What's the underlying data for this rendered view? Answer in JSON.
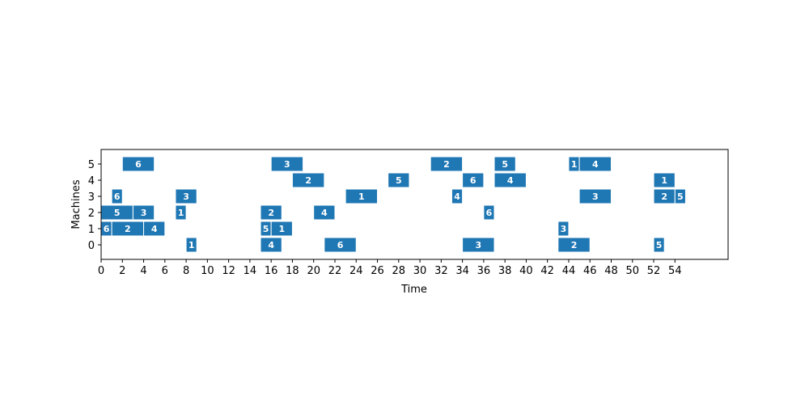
{
  "chart_data": {
    "type": "gantt",
    "title": "",
    "xlabel": "Time",
    "ylabel": "Machines",
    "xlim": [
      0,
      59
    ],
    "ylim": [
      -0.9,
      5.9
    ],
    "xticks": [
      0,
      2,
      4,
      6,
      8,
      10,
      12,
      14,
      16,
      18,
      20,
      22,
      24,
      26,
      28,
      30,
      32,
      34,
      36,
      38,
      40,
      42,
      44,
      46,
      48,
      50,
      52,
      54
    ],
    "yticks": [
      0,
      1,
      2,
      3,
      4,
      5
    ],
    "grid": false,
    "bar_color": "#1f77b4",
    "tasks": [
      {
        "machine": 5,
        "start": 2,
        "end": 5,
        "job": "6"
      },
      {
        "machine": 5,
        "start": 16,
        "end": 19,
        "job": "3"
      },
      {
        "machine": 5,
        "start": 31,
        "end": 34,
        "job": "2"
      },
      {
        "machine": 5,
        "start": 37,
        "end": 39,
        "job": "5"
      },
      {
        "machine": 5,
        "start": 44,
        "end": 45,
        "job": "1"
      },
      {
        "machine": 5,
        "start": 45,
        "end": 48,
        "job": "4"
      },
      {
        "machine": 4,
        "start": 18,
        "end": 21,
        "job": "2"
      },
      {
        "machine": 4,
        "start": 27,
        "end": 29,
        "job": "5"
      },
      {
        "machine": 4,
        "start": 34,
        "end": 36,
        "job": "6"
      },
      {
        "machine": 4,
        "start": 37,
        "end": 40,
        "job": "4"
      },
      {
        "machine": 4,
        "start": 52,
        "end": 54,
        "job": "1"
      },
      {
        "machine": 3,
        "start": 1,
        "end": 2,
        "job": "6"
      },
      {
        "machine": 3,
        "start": 7,
        "end": 9,
        "job": "3"
      },
      {
        "machine": 3,
        "start": 23,
        "end": 26,
        "job": "1"
      },
      {
        "machine": 3,
        "start": 33,
        "end": 34,
        "job": "4"
      },
      {
        "machine": 3,
        "start": 45,
        "end": 48,
        "job": "3"
      },
      {
        "machine": 3,
        "start": 52,
        "end": 54,
        "job": "2"
      },
      {
        "machine": 3,
        "start": 54,
        "end": 55,
        "job": "5"
      },
      {
        "machine": 2,
        "start": 0,
        "end": 3,
        "job": "5"
      },
      {
        "machine": 2,
        "start": 3,
        "end": 5,
        "job": "3"
      },
      {
        "machine": 2,
        "start": 7,
        "end": 8,
        "job": "1"
      },
      {
        "machine": 2,
        "start": 15,
        "end": 17,
        "job": "2"
      },
      {
        "machine": 2,
        "start": 20,
        "end": 22,
        "job": "4"
      },
      {
        "machine": 2,
        "start": 36,
        "end": 37,
        "job": "6"
      },
      {
        "machine": 1,
        "start": 0,
        "end": 1,
        "job": "6"
      },
      {
        "machine": 1,
        "start": 1,
        "end": 4,
        "job": "2"
      },
      {
        "machine": 1,
        "start": 4,
        "end": 6,
        "job": "4"
      },
      {
        "machine": 1,
        "start": 15,
        "end": 16,
        "job": "5"
      },
      {
        "machine": 1,
        "start": 16,
        "end": 18,
        "job": "1"
      },
      {
        "machine": 1,
        "start": 43,
        "end": 44,
        "job": "3"
      },
      {
        "machine": 0,
        "start": 8,
        "end": 9,
        "job": "1"
      },
      {
        "machine": 0,
        "start": 15,
        "end": 17,
        "job": "4"
      },
      {
        "machine": 0,
        "start": 21,
        "end": 24,
        "job": "6"
      },
      {
        "machine": 0,
        "start": 34,
        "end": 37,
        "job": "3"
      },
      {
        "machine": 0,
        "start": 43,
        "end": 46,
        "job": "2"
      },
      {
        "machine": 0,
        "start": 52,
        "end": 53,
        "job": "5"
      }
    ]
  }
}
